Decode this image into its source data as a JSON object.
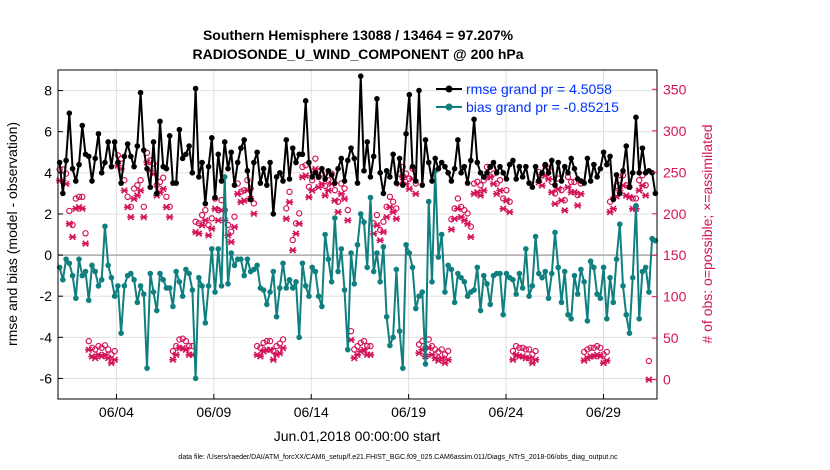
{
  "chart_data": {
    "type": "line",
    "title_line1": "Southern Hemisphere 13088 / 13464 = 97.207%",
    "title_line2": "RADIOSONDE_U_WIND_COMPONENT @ 200 hPa",
    "xlabel": "Jun.01,2018 00:00:00 start",
    "ylabel_left": "rmse and bias (model - observation)",
    "ylabel_right": "# of obs: o=possible; ×=assimilated",
    "footer": "data file: /Users/raeder/DAI/ATM_forcXX/CAM6_setup/f.e21.FHIST_BGC.f09_025.CAM6assim.011/Diags_NTrS_2018-06/obs_diag_output.nc",
    "xlim": [
      1.0,
      31.75
    ],
    "ylim_left": [
      -7,
      9
    ],
    "ylim_right": [
      -23.33,
      373.33
    ],
    "x_ticks": [
      {
        "value": 4,
        "label": "06/04"
      },
      {
        "value": 9,
        "label": "06/09"
      },
      {
        "value": 14,
        "label": "06/14"
      },
      {
        "value": 19,
        "label": "06/19"
      },
      {
        "value": 24,
        "label": "06/24"
      },
      {
        "value": 29,
        "label": "06/29"
      }
    ],
    "y_ticks_left": [
      "-6",
      "-4",
      "-2",
      "0",
      "2",
      "4",
      "6",
      "8"
    ],
    "y_tick_values_left": [
      -6,
      -4,
      -2,
      0,
      2,
      4,
      6,
      8
    ],
    "y_ticks_right": [
      "0",
      "50",
      "100",
      "150",
      "200",
      "250",
      "300",
      "350"
    ],
    "y_tick_values_right": [
      0,
      50,
      100,
      150,
      200,
      250,
      300,
      350
    ],
    "legend": [
      {
        "label": "rmse grand pr = 4.5058",
        "color": "#000000"
      },
      {
        "label": "bias grand pr = -0.85215",
        "color": "#0f7f7f"
      }
    ],
    "colors": {
      "rmse": "#000000",
      "bias": "#0f7f7f",
      "obs": "#d4145a",
      "legend_text": "#0033ff",
      "zero_line": "#aaaaaa",
      "grid": "#e0e0e0"
    },
    "series": [
      {
        "name": "rmse",
        "values": [
          4.5,
          3.0,
          4.6,
          6.9,
          4.2,
          3.6,
          4.4,
          6.3,
          4.9,
          4.8,
          3.6,
          4.7,
          5.9,
          4.0,
          4.5,
          5.5,
          4.3,
          5.5,
          4.5,
          3.5,
          4.8,
          5.4,
          4.8,
          4.3,
          5.3,
          7.9,
          5.1,
          4.2,
          3.3,
          5.5,
          3.0,
          6.5,
          4.3,
          4.2,
          5.8,
          3.5,
          3.5,
          6.1,
          4.7,
          4.9,
          5.3,
          4.0,
          8.1,
          3.8,
          4.5,
          2.5,
          4.3,
          5.7,
          2.8,
          4.9,
          3.6,
          5.5,
          4.2,
          5.0,
          3.4,
          4.5,
          5.2,
          5.6,
          4.1,
          2.7,
          4.5,
          5.0,
          3.5,
          4.2,
          3.4,
          4.5,
          2.0,
          3.8,
          4.0,
          3.6,
          5.6,
          3.7,
          5.2,
          4.5,
          4.9,
          4.9,
          7.5,
          4.5,
          3.8,
          4.0,
          3.8,
          4.2,
          3.7,
          4.1,
          3.9,
          3.5,
          4.2,
          4.7,
          3.6,
          4.6,
          5.2,
          4.7,
          3.5,
          8.7,
          4.1,
          5.5,
          3.8,
          4.8,
          7.6,
          4.0,
          3.0,
          4.1,
          3.8,
          4.9,
          3.5,
          4.7,
          3.4,
          5.9,
          7.8,
          4.3,
          3.6,
          8.0,
          3.4,
          5.6,
          4.5,
          3.6,
          4.7,
          4.2,
          4.5,
          4.3,
          4.0,
          3.6,
          4.2,
          5.6,
          4.0,
          4.3,
          3.5,
          4.6,
          6.6,
          4.5,
          4.0,
          3.8,
          4.0,
          4.3,
          4.5,
          4.0,
          4.3,
          4.0,
          3.7,
          4.4,
          4.6,
          3.7,
          4.3,
          3.8,
          4.3,
          3.5,
          3.3,
          4.3,
          3.6,
          4.0,
          4.4,
          4.0,
          4.6,
          3.4,
          4.5,
          3.6,
          4.3,
          4.0,
          4.7,
          4.2,
          3.7,
          3.6,
          3.5,
          4.7,
          3.6,
          4.4,
          3.8,
          4.2,
          5.0,
          4.4,
          4.8,
          2.7,
          3.9,
          3.0,
          4.1,
          5.3,
          3.3,
          4.0,
          6.7,
          4.0,
          5.2,
          4.0,
          4.1,
          4.0,
          3.0
        ]
      },
      {
        "name": "bias",
        "values": [
          -0.6,
          -1.2,
          -0.2,
          -0.4,
          -1.0,
          -2.1,
          -0.2,
          -1.0,
          -0.8,
          -2.2,
          -0.5,
          -0.8,
          -1.5,
          -1.2,
          1.4,
          -0.5,
          -1.1,
          -2.0,
          -1.5,
          -3.8,
          -1.5,
          -1.0,
          -0.9,
          -1.2,
          -2.3,
          -1.5,
          -1.9,
          -5.5,
          -0.9,
          -1.8,
          -2.7,
          -0.9,
          -1.2,
          -1.6,
          -1.6,
          -2.5,
          -0.8,
          -1.3,
          -2.0,
          -0.7,
          -0.9,
          -1.7,
          -6.0,
          -1.1,
          -1.5,
          -3.3,
          -1.5,
          0.3,
          -1.8,
          0.3,
          -1.5,
          3.8,
          -1.4,
          0.1,
          -0.5,
          -0.2,
          -0.2,
          -1.0,
          -0.2,
          -0.8,
          -0.7,
          -0.5,
          -1.6,
          -1.7,
          -2.4,
          -1.8,
          -0.8,
          -3.0,
          -1.6,
          -0.4,
          -1.6,
          -1.2,
          -1.6,
          -1.3,
          -4.0,
          -0.4,
          -1.5,
          -2.0,
          -0.6,
          -0.8,
          -2.0,
          -2.5,
          1.0,
          -0.2,
          -1.3,
          1.8,
          -0.8,
          0.3,
          -1.7,
          -4.6,
          0.1,
          -1.4,
          0.5,
          2.0,
          1.6,
          -0.6,
          2.8,
          -0.8,
          0.1,
          -1.3,
          0.4,
          -3.0,
          -4.4,
          -4.0,
          -0.7,
          -3.7,
          -5.5,
          0.5,
          0.1,
          -0.6,
          -2.6,
          -2.0,
          -1.8,
          -5.3,
          2.6,
          -1.3,
          4.1,
          -0.1,
          1.0,
          -1.8,
          -0.5,
          -0.7,
          -2.3,
          -0.9,
          -1.1,
          -1.3,
          -2.0,
          -1.8,
          -1.7,
          -0.6,
          -2.7,
          -1.0,
          -1.4,
          -2.4,
          -1.0,
          -0.9,
          -0.9,
          -2.9,
          -0.9,
          -1.1,
          -1.2,
          -1.9,
          -0.9,
          -1.6,
          0.3,
          -2.0,
          -1.5,
          0.9,
          -0.9,
          -1.1,
          -0.8,
          -2.1,
          -0.9,
          1.1,
          -0.6,
          -2.3,
          -0.8,
          -2.9,
          -3.1,
          -1.0,
          -1.9,
          -0.7,
          -1.3,
          -3.2,
          -0.3,
          -0.6,
          -1.9,
          -2.1,
          -0.6,
          -3.1,
          -1.1,
          -2.3,
          -0.2,
          1.5,
          -1.5,
          -2.9,
          -3.8,
          -1.1,
          2.4,
          -3.1,
          -0.8,
          -0.6,
          -1.8,
          0.8,
          0.7
        ]
      },
      {
        "name": "obs_possible",
        "values": [
          245,
          245,
          240,
          195,
          178,
          210,
          212,
          212,
          168,
          38,
          30,
          28,
          32,
          30,
          33,
          28,
          22,
          26,
          262,
          258,
          232,
          212,
          200,
          222,
          226,
          232,
          200,
          265,
          256,
          252,
          226,
          230,
          235,
          212,
          200,
          26,
          32,
          40,
          41,
          38,
          32,
          32,
          182,
          180,
          190,
          196,
          178,
          186,
          210,
          196,
          208,
          196,
          178,
          170,
          188,
          228,
          218,
          220,
          232,
          222,
          204,
          32,
          30,
          36,
          38,
          38,
          26,
          32,
          35,
          40,
          198,
          218,
          160,
          180,
          192,
          248,
          250,
          224,
          232,
          258,
          236,
          240,
          225,
          232,
          240,
          220,
          206,
          228,
          222,
          196,
          50,
          28,
          32,
          36,
          38,
          32,
          32,
          180,
          190,
          172,
          182,
          200,
          212,
          206,
          198,
          240,
          248,
          240,
          234,
          246,
          228,
          34,
          38,
          30,
          40,
          32,
          28,
          25,
          28,
          22,
          26,
          185,
          198,
          210,
          200,
          196,
          192,
          176,
          228,
          230,
          226,
          232,
          248,
          248,
          240,
          228,
          232,
          210,
          220,
          206,
          26,
          32,
          30,
          30,
          28,
          28,
          22,
          26,
          242,
          238,
          250,
          246,
          230,
          216,
          234,
          220,
          208,
          236,
          230,
          230,
          214,
          228,
          25,
          28,
          30,
          30,
          32,
          30,
          22,
          25,
          206,
          210,
          225,
          232,
          238,
          226,
          224,
          210,
          210,
          232,
          238,
          226,
          14
        ]
      },
      {
        "name": "obs_assimilated",
        "values": [
          240,
          240,
          236,
          188,
          172,
          206,
          208,
          206,
          164,
          36,
          28,
          26,
          30,
          28,
          30,
          26,
          20,
          24,
          258,
          254,
          228,
          208,
          196,
          218,
          222,
          228,
          196,
          262,
          252,
          248,
          222,
          226,
          230,
          208,
          196,
          24,
          30,
          38,
          38,
          36,
          30,
          30,
          178,
          176,
          186,
          192,
          174,
          182,
          206,
          192,
          204,
          192,
          174,
          166,
          184,
          224,
          214,
          216,
          228,
          218,
          200,
          30,
          28,
          34,
          36,
          36,
          24,
          30,
          32,
          38,
          194,
          214,
          156,
          176,
          188,
          244,
          246,
          220,
          228,
          254,
          232,
          236,
          222,
          228,
          236,
          216,
          202,
          224,
          218,
          192,
          48,
          26,
          30,
          34,
          36,
          30,
          30,
          176,
          186,
          168,
          178,
          196,
          208,
          202,
          194,
          236,
          244,
          236,
          230,
          242,
          224,
          32,
          36,
          28,
          38,
          30,
          26,
          23,
          26,
          20,
          24,
          181,
          194,
          206,
          196,
          192,
          188,
          172,
          224,
          226,
          222,
          228,
          244,
          244,
          236,
          224,
          228,
          206,
          216,
          202,
          24,
          30,
          28,
          28,
          26,
          26,
          20,
          24,
          238,
          234,
          246,
          242,
          226,
          212,
          230,
          216,
          204,
          232,
          226,
          226,
          210,
          224,
          23,
          26,
          28,
          28,
          30,
          28,
          20,
          23,
          202,
          206,
          221,
          228,
          234,
          222,
          220,
          206,
          206,
          228,
          234,
          222,
          0
        ]
      }
    ]
  }
}
